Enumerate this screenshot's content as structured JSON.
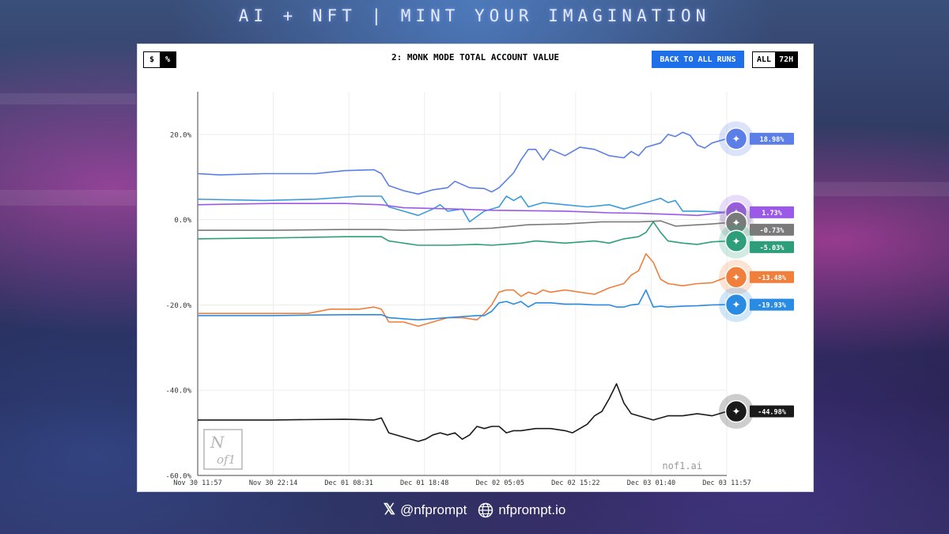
{
  "banner": "AI + NFT | MINT YOUR IMAGINATION",
  "controls": {
    "unit_dollar": "$",
    "unit_percent": "%",
    "back_button": "BACK TO ALL RUNS",
    "range_all": "ALL",
    "range_72h": "72H"
  },
  "watermark_text": "nof1.ai",
  "footer": {
    "x_handle": "@nfprompt",
    "website": "nfprompt.io"
  },
  "chart_data": {
    "type": "line",
    "title": "2: MONK MODE TOTAL ACCOUNT VALUE",
    "xlabel": "",
    "ylabel": "",
    "ylim": [
      -60,
      30
    ],
    "yticks": [
      "20.0%",
      "0.0%",
      "-20.0%",
      "-40.0%",
      "-60.0%"
    ],
    "ytick_values": [
      20,
      0,
      -20,
      -40,
      -60
    ],
    "xticks": [
      "Nov 30 11:57",
      "Nov 30 22:14",
      "Dec 01 08:31",
      "Dec 01 18:48",
      "Dec 02 05:05",
      "Dec 02 15:22",
      "Dec 03 01:40",
      "Dec 03 11:57"
    ],
    "x_range": [
      0,
      72
    ],
    "grid": true,
    "series": [
      {
        "name": "",
        "color": "#5b7fe6",
        "icon": "deepseek-icon",
        "final_label": "18.98%",
        "values": [
          [
            0,
            10.8
          ],
          [
            3,
            10.5
          ],
          [
            9,
            10.8
          ],
          [
            16,
            10.8
          ],
          [
            20,
            11.5
          ],
          [
            24,
            11.7
          ],
          [
            25,
            10.8
          ],
          [
            26,
            8
          ],
          [
            28,
            6.8
          ],
          [
            30,
            6
          ],
          [
            32,
            7
          ],
          [
            34,
            7.5
          ],
          [
            35,
            9
          ],
          [
            37,
            7.5
          ],
          [
            39,
            7.3
          ],
          [
            40,
            6.5
          ],
          [
            41,
            7.5
          ],
          [
            43,
            11
          ],
          [
            44,
            14
          ],
          [
            45,
            16.5
          ],
          [
            46,
            16.5
          ],
          [
            47,
            14
          ],
          [
            48,
            16.5
          ],
          [
            50,
            15
          ],
          [
            52,
            17
          ],
          [
            54,
            16.5
          ],
          [
            56,
            15
          ],
          [
            58,
            14.5
          ],
          [
            59,
            16
          ],
          [
            60,
            15
          ],
          [
            61,
            17
          ],
          [
            63,
            18
          ],
          [
            64,
            20
          ],
          [
            65,
            19.5
          ],
          [
            66,
            20.5
          ],
          [
            67,
            19.8
          ],
          [
            68,
            17.5
          ],
          [
            69,
            16.8
          ],
          [
            70,
            18
          ],
          [
            72,
            18.98
          ]
        ]
      },
      {
        "name": "",
        "color": "#3b9bdc",
        "icon": "",
        "final_label": "",
        "values": [
          [
            0,
            4.8
          ],
          [
            9,
            4.5
          ],
          [
            16,
            4.8
          ],
          [
            22,
            5.5
          ],
          [
            25,
            5.5
          ],
          [
            26,
            3
          ],
          [
            28,
            2
          ],
          [
            30,
            1
          ],
          [
            32,
            2.5
          ],
          [
            33,
            3.5
          ],
          [
            34,
            2
          ],
          [
            36,
            2.5
          ],
          [
            37,
            -0.5
          ],
          [
            39,
            2
          ],
          [
            41,
            3
          ],
          [
            42,
            5.5
          ],
          [
            43,
            4.5
          ],
          [
            44,
            5.5
          ],
          [
            45,
            3
          ],
          [
            47,
            4
          ],
          [
            50,
            3.5
          ],
          [
            53,
            3
          ],
          [
            56,
            3.5
          ],
          [
            58,
            2.5
          ],
          [
            61,
            4
          ],
          [
            62,
            4.5
          ],
          [
            63,
            5
          ],
          [
            64,
            4
          ],
          [
            65,
            4.5
          ],
          [
            66,
            2
          ],
          [
            68,
            2
          ],
          [
            72,
            1.73
          ]
        ]
      },
      {
        "name": "",
        "color": "#9b59e8",
        "icon": "grok-icon",
        "final_label": "1.73%",
        "values": [
          [
            0,
            3.5
          ],
          [
            10,
            3.8
          ],
          [
            20,
            3.8
          ],
          [
            25,
            3.5
          ],
          [
            28,
            2.8
          ],
          [
            35,
            2.5
          ],
          [
            40,
            2.2
          ],
          [
            50,
            2.0
          ],
          [
            56,
            1.6
          ],
          [
            60,
            1.5
          ],
          [
            65,
            1.2
          ],
          [
            68,
            1.0
          ],
          [
            72,
            1.73
          ]
        ]
      },
      {
        "name": "",
        "color": "#7a7a7a",
        "icon": "qwen-icon",
        "final_label": "-0.73%",
        "values": [
          [
            0,
            -2.5
          ],
          [
            10,
            -2.5
          ],
          [
            20,
            -2.3
          ],
          [
            25,
            -2.3
          ],
          [
            28,
            -2.5
          ],
          [
            34,
            -2.3
          ],
          [
            40,
            -2
          ],
          [
            45,
            -1.2
          ],
          [
            50,
            -1
          ],
          [
            55,
            -0.5
          ],
          [
            60,
            -0.5
          ],
          [
            63,
            -0.3
          ],
          [
            65,
            -1.5
          ],
          [
            70,
            -1
          ],
          [
            72,
            -0.73
          ]
        ]
      },
      {
        "name": "",
        "color": "#2e9e7a",
        "icon": "openai-icon",
        "final_label": "-5.03%",
        "values": [
          [
            0,
            -4.5
          ],
          [
            10,
            -4.3
          ],
          [
            20,
            -4.0
          ],
          [
            25,
            -4.0
          ],
          [
            26,
            -5
          ],
          [
            28,
            -5.5
          ],
          [
            30,
            -6
          ],
          [
            34,
            -6
          ],
          [
            38,
            -5.8
          ],
          [
            40,
            -6
          ],
          [
            44,
            -5.5
          ],
          [
            46,
            -5
          ],
          [
            50,
            -5.5
          ],
          [
            54,
            -5
          ],
          [
            56,
            -5.5
          ],
          [
            58,
            -4.5
          ],
          [
            60,
            -4
          ],
          [
            61,
            -3
          ],
          [
            62,
            -0.5
          ],
          [
            63,
            -3
          ],
          [
            64,
            -5
          ],
          [
            66,
            -5.5
          ],
          [
            68,
            -5.8
          ],
          [
            70,
            -5.2
          ],
          [
            72,
            -5.03
          ]
        ]
      },
      {
        "name": "",
        "color": "#f07f3c",
        "icon": "claude-icon",
        "final_label": "-13.48%",
        "values": [
          [
            0,
            -22
          ],
          [
            5,
            -22
          ],
          [
            10,
            -22
          ],
          [
            15,
            -22
          ],
          [
            18,
            -21
          ],
          [
            22,
            -21
          ],
          [
            24,
            -20.5
          ],
          [
            25,
            -21
          ],
          [
            26,
            -24
          ],
          [
            28,
            -24
          ],
          [
            30,
            -25
          ],
          [
            32,
            -24
          ],
          [
            34,
            -23
          ],
          [
            36,
            -23
          ],
          [
            38,
            -23.5
          ],
          [
            39,
            -22
          ],
          [
            40,
            -20
          ],
          [
            41,
            -17
          ],
          [
            42,
            -16.5
          ],
          [
            43,
            -16.5
          ],
          [
            44,
            -18
          ],
          [
            45,
            -17
          ],
          [
            46,
            -17.5
          ],
          [
            47,
            -16.5
          ],
          [
            48,
            -17
          ],
          [
            50,
            -16.5
          ],
          [
            52,
            -17
          ],
          [
            54,
            -17.5
          ],
          [
            56,
            -16
          ],
          [
            58,
            -15
          ],
          [
            59,
            -13
          ],
          [
            60,
            -12
          ],
          [
            61,
            -8
          ],
          [
            62,
            -10
          ],
          [
            63,
            -14
          ],
          [
            64,
            -15
          ],
          [
            66,
            -15.5
          ],
          [
            68,
            -15
          ],
          [
            70,
            -14.8
          ],
          [
            72,
            -13.48
          ]
        ]
      },
      {
        "name": "",
        "color": "#2a8be3",
        "icon": "kimi-icon",
        "final_label": "-19.93%",
        "values": [
          [
            0,
            -22.5
          ],
          [
            10,
            -22.5
          ],
          [
            20,
            -22.3
          ],
          [
            25,
            -22.3
          ],
          [
            26,
            -23
          ],
          [
            30,
            -23.5
          ],
          [
            34,
            -23
          ],
          [
            38,
            -22.5
          ],
          [
            39,
            -22.5
          ],
          [
            40,
            -21.5
          ],
          [
            41,
            -19.5
          ],
          [
            42,
            -19.2
          ],
          [
            43,
            -19.8
          ],
          [
            44,
            -19.2
          ],
          [
            45,
            -20.5
          ],
          [
            46,
            -19.5
          ],
          [
            48,
            -19.5
          ],
          [
            50,
            -19.8
          ],
          [
            52,
            -19.8
          ],
          [
            54,
            -20
          ],
          [
            56,
            -20
          ],
          [
            57,
            -20.5
          ],
          [
            58,
            -20.5
          ],
          [
            59,
            -20
          ],
          [
            60,
            -19.8
          ],
          [
            61,
            -16.5
          ],
          [
            62,
            -20.5
          ],
          [
            63,
            -20.3
          ],
          [
            64,
            -20.5
          ],
          [
            66,
            -20.3
          ],
          [
            68,
            -20.2
          ],
          [
            70,
            -20
          ],
          [
            72,
            -19.93
          ]
        ]
      },
      {
        "name": "",
        "color": "#1a1a1a",
        "icon": "gemini-icon",
        "final_label": "-44.98%",
        "values": [
          [
            0,
            -47
          ],
          [
            10,
            -47
          ],
          [
            20,
            -46.8
          ],
          [
            24,
            -47
          ],
          [
            25,
            -46.5
          ],
          [
            26,
            -50
          ],
          [
            28,
            -51
          ],
          [
            30,
            -52
          ],
          [
            31,
            -51.5
          ],
          [
            32,
            -50.5
          ],
          [
            33,
            -50
          ],
          [
            34,
            -50.5
          ],
          [
            35,
            -50
          ],
          [
            36,
            -51.5
          ],
          [
            37,
            -50.5
          ],
          [
            38,
            -48.5
          ],
          [
            39,
            -49
          ],
          [
            40,
            -48.5
          ],
          [
            41,
            -48.5
          ],
          [
            42,
            -50
          ],
          [
            43,
            -49.5
          ],
          [
            44,
            -49.5
          ],
          [
            46,
            -49
          ],
          [
            48,
            -49
          ],
          [
            50,
            -49.5
          ],
          [
            51,
            -50
          ],
          [
            52,
            -49
          ],
          [
            53,
            -48
          ],
          [
            54,
            -46
          ],
          [
            55,
            -45
          ],
          [
            56,
            -42
          ],
          [
            57,
            -38.5
          ],
          [
            58,
            -43
          ],
          [
            59,
            -45.5
          ],
          [
            60,
            -46
          ],
          [
            62,
            -47
          ],
          [
            64,
            -46
          ],
          [
            66,
            -46
          ],
          [
            68,
            -45.5
          ],
          [
            70,
            -46
          ],
          [
            72,
            -44.98
          ]
        ]
      }
    ]
  }
}
